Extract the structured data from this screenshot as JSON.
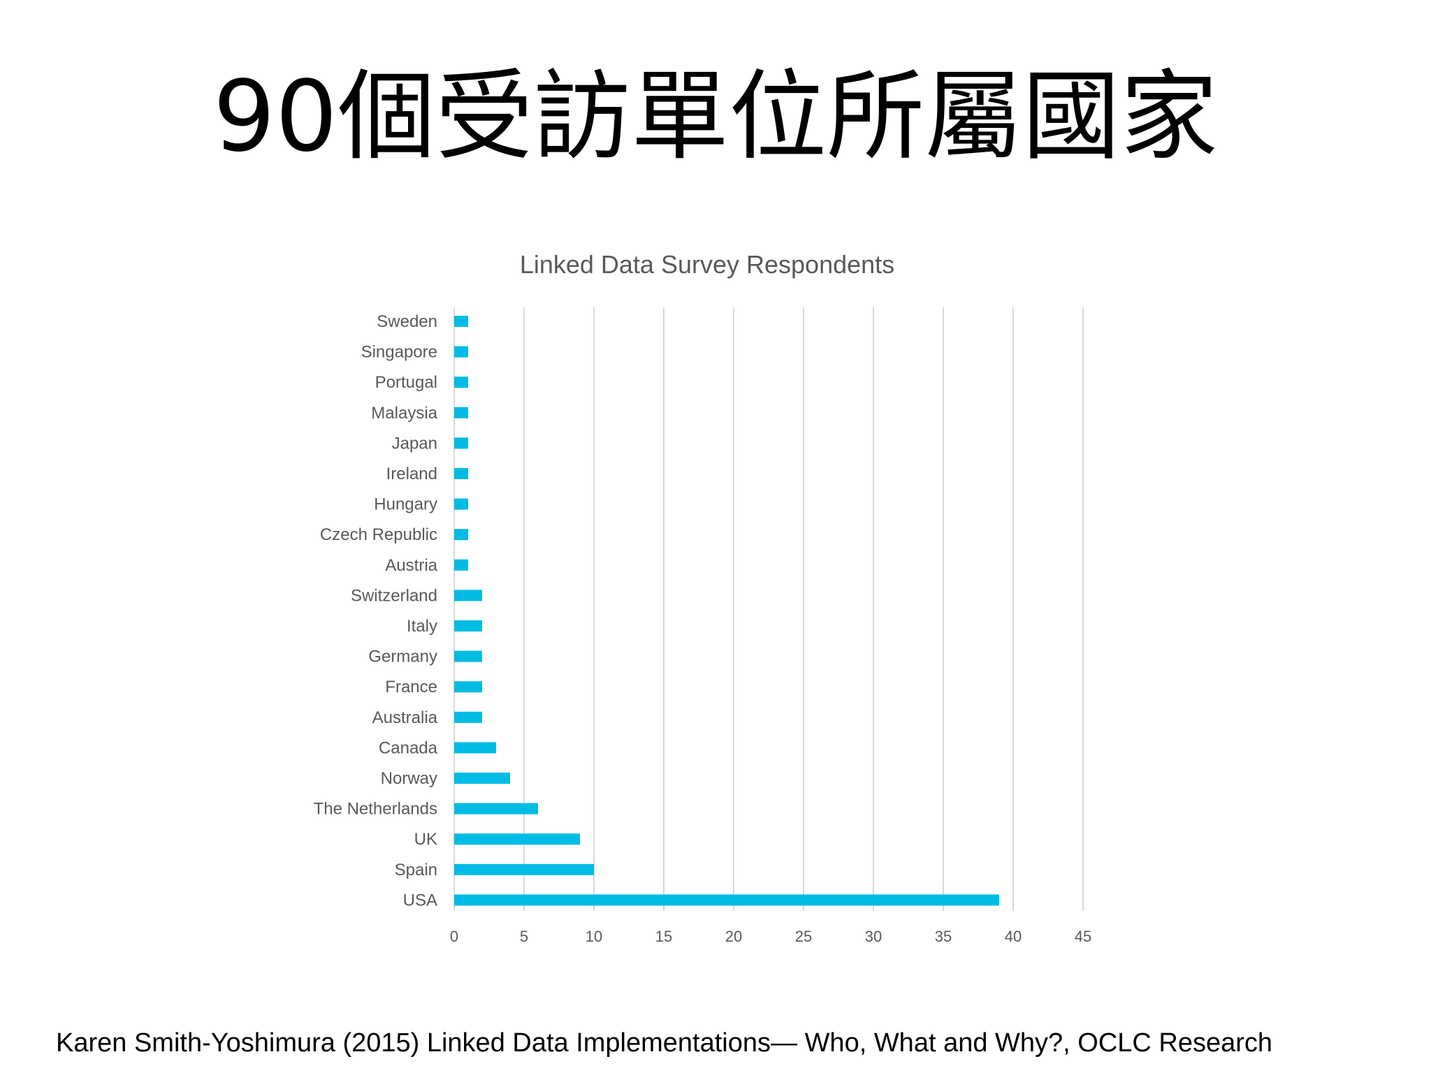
{
  "slide": {
    "title": "90個受訪單位所屬國家",
    "citation": "Karen Smith-Yoshimura (2015) Linked Data Implementations— Who, What and Why?, OCLC Research"
  },
  "chart_data": {
    "type": "bar",
    "orientation": "horizontal",
    "title": "Linked Data Survey Respondents",
    "categories": [
      "Sweden",
      "Singapore",
      "Portugal",
      "Malaysia",
      "Japan",
      "Ireland",
      "Hungary",
      "Czech Republic",
      "Austria",
      "Switzerland",
      "Italy",
      "Germany",
      "France",
      "Australia",
      "Canada",
      "Norway",
      "The Netherlands",
      "UK",
      "Spain",
      "USA"
    ],
    "values": [
      1,
      1,
      1,
      1,
      1,
      1,
      1,
      1,
      1,
      2,
      2,
      2,
      2,
      2,
      3,
      4,
      6,
      9,
      10,
      39
    ],
    "xlim": [
      0,
      45
    ],
    "xticks": [
      "0",
      "5",
      "10",
      "15",
      "20",
      "25",
      "30",
      "35",
      "40",
      "45"
    ],
    "grid": "vertical",
    "bar_color": "#00BCE4",
    "grid_color": "#D9D9D9",
    "text_color": "#595959"
  }
}
